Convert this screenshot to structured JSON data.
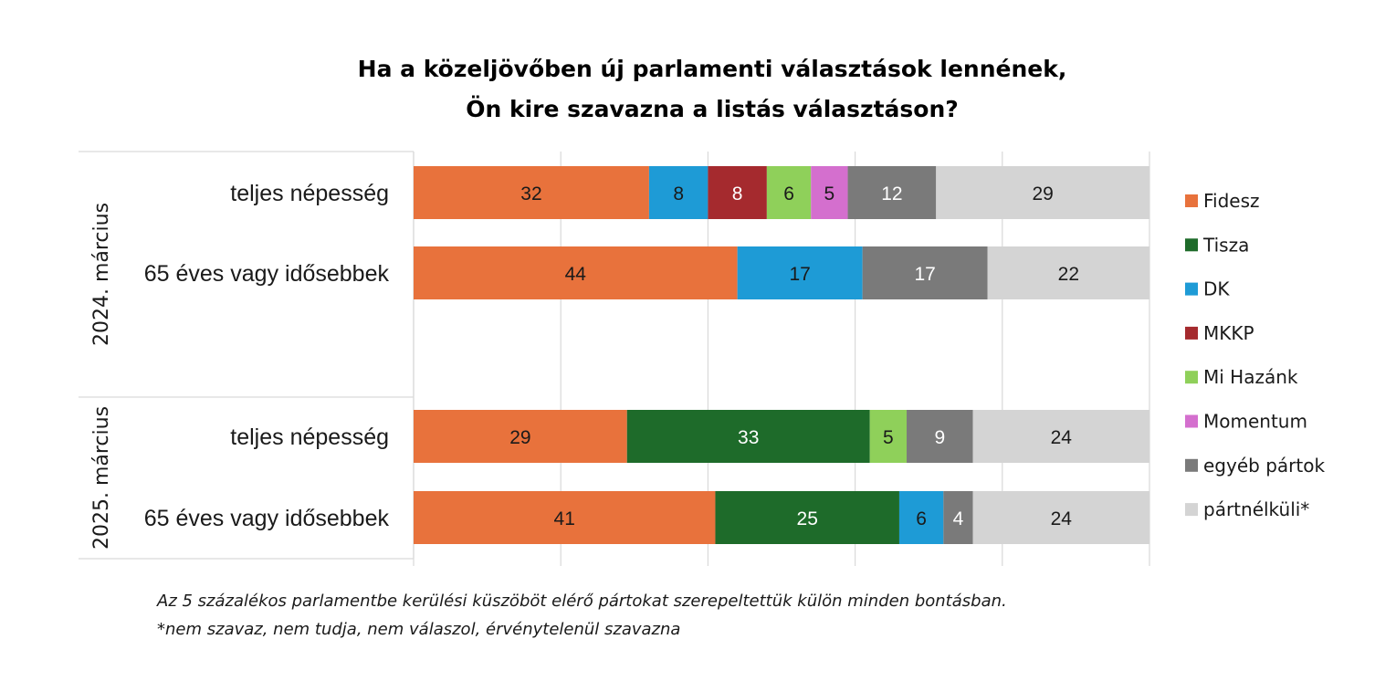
{
  "chart_data": {
    "type": "bar",
    "orientation": "horizontal",
    "stacked": true,
    "title_lines": [
      "Ha a közeljövőben új parlamenti választások lennének,",
      "Ön kire szavazna a listás választáson?"
    ],
    "xlim": [
      0,
      100
    ],
    "grid": true,
    "legend_position": "right",
    "groups": [
      {
        "label": "2024. március",
        "rows": [
          {
            "label": "teljes népesség",
            "values": {
              "Fidesz": 32,
              "DK": 8,
              "MKKP": 8,
              "Mi Hazánk": 6,
              "Momentum": 5,
              "egyéb pártok": 12,
              "pártnélküli*": 29
            }
          },
          {
            "label": "65 éves vagy idősebbek",
            "values": {
              "Fidesz": 44,
              "DK": 17,
              "egyéb pártok": 17,
              "pártnélküli*": 22
            }
          }
        ]
      },
      {
        "label": "2025. március",
        "rows": [
          {
            "label": "teljes népesség",
            "values": {
              "Fidesz": 29,
              "Tisza": 33,
              "Mi Hazánk": 5,
              "egyéb pártok": 9,
              "pártnélküli*": 24
            }
          },
          {
            "label": "65 éves vagy idősebbek",
            "values": {
              "Fidesz": 41,
              "Tisza": 25,
              "DK": 6,
              "egyéb pártok": 4,
              "pártnélküli*": 24
            }
          }
        ]
      }
    ],
    "series": [
      {
        "name": "Fidesz",
        "color": "#E8723C",
        "label_color": "#1a1a1a"
      },
      {
        "name": "Tisza",
        "color": "#1E6B2A",
        "label_color": "#ffffff"
      },
      {
        "name": "DK",
        "color": "#1E9BD6",
        "label_color": "#1a1a1a"
      },
      {
        "name": "MKKP",
        "color": "#A52A2E",
        "label_color": "#ffffff"
      },
      {
        "name": "Mi Hazánk",
        "color": "#8FD05A",
        "label_color": "#1a1a1a"
      },
      {
        "name": "Momentum",
        "color": "#D46FCE",
        "label_color": "#1a1a1a"
      },
      {
        "name": "egyéb pártok",
        "color": "#7A7A7A",
        "label_color": "#ffffff"
      },
      {
        "name": "pártnélküli*",
        "color": "#D4D4D4",
        "label_color": "#1a1a1a"
      }
    ],
    "notes": [
      "Az 5 százalékos parlamentbe kerülési küszöböt elérő pártokat szerepeltettük külön minden bontásban.",
      "*nem szavaz, nem tudja, nem válaszol, érvénytelenül szavazna"
    ]
  }
}
